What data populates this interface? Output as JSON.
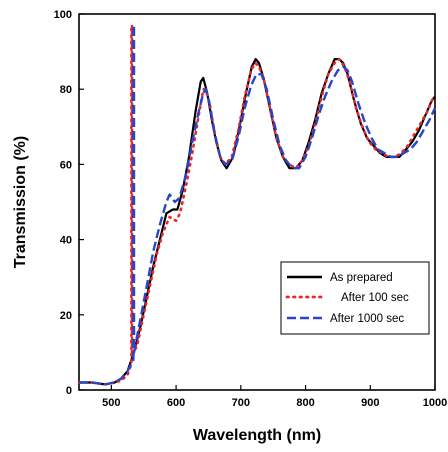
{
  "chart_data": {
    "type": "line",
    "title": "",
    "xlabel": "Wavelength (nm)",
    "ylabel": "Transmission (%)",
    "xlim": [
      450,
      1000
    ],
    "ylim": [
      0,
      100
    ],
    "x_ticks": [
      500,
      600,
      700,
      800,
      900,
      1000
    ],
    "y_ticks": [
      0,
      20,
      40,
      60,
      80,
      100
    ],
    "grid": false,
    "legend_position": "lower-right",
    "series": [
      {
        "name": "As prepared",
        "color": "#000000",
        "style": "solid",
        "points": [
          [
            450,
            2
          ],
          [
            470,
            2
          ],
          [
            490,
            1.5
          ],
          [
            505,
            2
          ],
          [
            515,
            3
          ],
          [
            525,
            5
          ],
          [
            535,
            10
          ],
          [
            545,
            17
          ],
          [
            555,
            25
          ],
          [
            565,
            33
          ],
          [
            575,
            40
          ],
          [
            585,
            47
          ],
          [
            595,
            48
          ],
          [
            602,
            48
          ],
          [
            610,
            53
          ],
          [
            620,
            62
          ],
          [
            630,
            74
          ],
          [
            638,
            82
          ],
          [
            642,
            83
          ],
          [
            648,
            79
          ],
          [
            655,
            72
          ],
          [
            662,
            66
          ],
          [
            670,
            61
          ],
          [
            678,
            59
          ],
          [
            688,
            62
          ],
          [
            698,
            70
          ],
          [
            708,
            79
          ],
          [
            717,
            86
          ],
          [
            723,
            88
          ],
          [
            728,
            87
          ],
          [
            735,
            83
          ],
          [
            745,
            75
          ],
          [
            755,
            67
          ],
          [
            765,
            62
          ],
          [
            775,
            59
          ],
          [
            785,
            59
          ],
          [
            795,
            61
          ],
          [
            805,
            66
          ],
          [
            815,
            72
          ],
          [
            825,
            79
          ],
          [
            835,
            84
          ],
          [
            845,
            88
          ],
          [
            852,
            88
          ],
          [
            858,
            87
          ],
          [
            865,
            84
          ],
          [
            875,
            77
          ],
          [
            885,
            71
          ],
          [
            895,
            67
          ],
          [
            905,
            65
          ],
          [
            915,
            63
          ],
          [
            925,
            62
          ],
          [
            935,
            62
          ],
          [
            945,
            62
          ],
          [
            955,
            64
          ],
          [
            965,
            66
          ],
          [
            975,
            69
          ],
          [
            985,
            73
          ],
          [
            995,
            77
          ],
          [
            1000,
            78
          ]
        ]
      },
      {
        "name": "After 100 sec",
        "color": "#e8262b",
        "style": "dotted",
        "points": [
          [
            450,
            2
          ],
          [
            470,
            2
          ],
          [
            490,
            1.5
          ],
          [
            505,
            2
          ],
          [
            515,
            2.5
          ],
          [
            525,
            4
          ],
          [
            531,
            7
          ],
          [
            531,
            97
          ],
          [
            532,
            97
          ],
          [
            532,
            9
          ],
          [
            540,
            12
          ],
          [
            550,
            20
          ],
          [
            560,
            28
          ],
          [
            570,
            36
          ],
          [
            580,
            42
          ],
          [
            590,
            46
          ],
          [
            600,
            45
          ],
          [
            606,
            47
          ],
          [
            615,
            54
          ],
          [
            625,
            63
          ],
          [
            635,
            73
          ],
          [
            642,
            80
          ],
          [
            646,
            80
          ],
          [
            652,
            76
          ],
          [
            660,
            68
          ],
          [
            668,
            62
          ],
          [
            676,
            60
          ],
          [
            686,
            62
          ],
          [
            696,
            69
          ],
          [
            706,
            78
          ],
          [
            716,
            85
          ],
          [
            722,
            87
          ],
          [
            728,
            86
          ],
          [
            735,
            83
          ],
          [
            745,
            75
          ],
          [
            755,
            67
          ],
          [
            765,
            62
          ],
          [
            775,
            60
          ],
          [
            785,
            59
          ],
          [
            795,
            61
          ],
          [
            805,
            65
          ],
          [
            815,
            71
          ],
          [
            825,
            78
          ],
          [
            835,
            84
          ],
          [
            845,
            87
          ],
          [
            852,
            88
          ],
          [
            860,
            86
          ],
          [
            868,
            82
          ],
          [
            878,
            75
          ],
          [
            888,
            70
          ],
          [
            898,
            66
          ],
          [
            908,
            64
          ],
          [
            918,
            63
          ],
          [
            928,
            62
          ],
          [
            938,
            62
          ],
          [
            948,
            63
          ],
          [
            958,
            65
          ],
          [
            968,
            68
          ],
          [
            978,
            71
          ],
          [
            988,
            74
          ],
          [
            998,
            78
          ],
          [
            1000,
            78
          ]
        ]
      },
      {
        "name": "After 1000 sec",
        "color": "#2945c8",
        "style": "dashed",
        "points": [
          [
            450,
            2
          ],
          [
            470,
            2
          ],
          [
            490,
            1.5
          ],
          [
            505,
            2
          ],
          [
            515,
            3
          ],
          [
            525,
            5
          ],
          [
            534,
            8
          ],
          [
            534,
            97
          ],
          [
            535,
            97
          ],
          [
            535,
            10
          ],
          [
            545,
            19
          ],
          [
            555,
            28
          ],
          [
            565,
            37
          ],
          [
            575,
            44
          ],
          [
            585,
            50
          ],
          [
            590,
            52
          ],
          [
            598,
            50
          ],
          [
            605,
            51
          ],
          [
            615,
            57
          ],
          [
            625,
            66
          ],
          [
            635,
            74
          ],
          [
            642,
            79
          ],
          [
            646,
            80
          ],
          [
            652,
            76
          ],
          [
            660,
            68
          ],
          [
            668,
            62
          ],
          [
            676,
            60
          ],
          [
            686,
            61
          ],
          [
            696,
            67
          ],
          [
            706,
            75
          ],
          [
            716,
            81
          ],
          [
            724,
            84
          ],
          [
            732,
            84
          ],
          [
            740,
            80
          ],
          [
            750,
            72
          ],
          [
            760,
            65
          ],
          [
            770,
            61
          ],
          [
            780,
            59
          ],
          [
            790,
            59
          ],
          [
            800,
            62
          ],
          [
            810,
            67
          ],
          [
            820,
            73
          ],
          [
            830,
            78
          ],
          [
            840,
            82
          ],
          [
            850,
            85
          ],
          [
            858,
            86
          ],
          [
            865,
            85
          ],
          [
            872,
            82
          ],
          [
            882,
            76
          ],
          [
            892,
            71
          ],
          [
            902,
            67
          ],
          [
            912,
            64
          ],
          [
            922,
            63
          ],
          [
            932,
            62
          ],
          [
            942,
            62
          ],
          [
            952,
            63
          ],
          [
            962,
            64
          ],
          [
            972,
            66
          ],
          [
            982,
            69
          ],
          [
            992,
            72
          ],
          [
            1000,
            75
          ]
        ]
      }
    ]
  }
}
